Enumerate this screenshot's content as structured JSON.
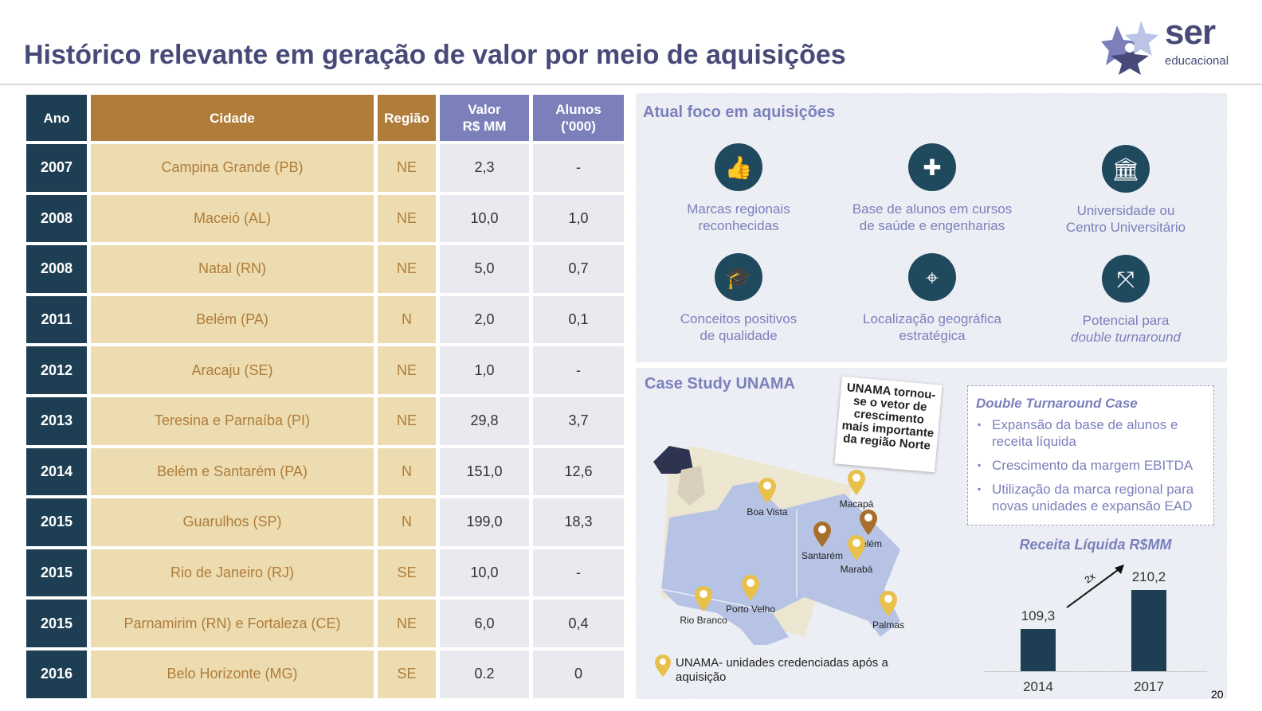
{
  "title": "Histórico relevante em geração de valor por meio de aquisições",
  "logo": {
    "name": "ser",
    "sub": "educacional"
  },
  "table": {
    "headers": [
      "Ano",
      "Cidade",
      "Região",
      "Valor R$ MM",
      "Alunos ('000)"
    ],
    "rows": [
      [
        "2007",
        "Campina Grande (PB)",
        "NE",
        "2,3",
        "-"
      ],
      [
        "2008",
        "Maceió (AL)",
        "NE",
        "10,0",
        "1,0"
      ],
      [
        "2008",
        "Natal (RN)",
        "NE",
        "5,0",
        "0,7"
      ],
      [
        "2011",
        "Belém (PA)",
        "N",
        "2,0",
        "0,1"
      ],
      [
        "2012",
        "Aracaju (SE)",
        "NE",
        "1,0",
        "-"
      ],
      [
        "2013",
        "Teresina e Parnaíba (PI)",
        "NE",
        "29,8",
        "3,7"
      ],
      [
        "2014",
        "Belém e Santarém (PA)",
        "N",
        "151,0",
        "12,6"
      ],
      [
        "2015",
        "Guarulhos (SP)",
        "N",
        "199,0",
        "18,3"
      ],
      [
        "2015",
        "Rio de Janeiro (RJ)",
        "SE",
        "10,0",
        "-"
      ],
      [
        "2015",
        "Parnamirim (RN) e Fortaleza (CE)",
        "NE",
        "6,0",
        "0,4"
      ],
      [
        "2016",
        "Belo Horizonte (MG)",
        "SE",
        "0.2",
        "0"
      ]
    ]
  },
  "focus": {
    "title": "Atual foco em aquisições",
    "items": [
      {
        "icon": "thumbs-up",
        "l1": "Marcas regionais",
        "l2": "reconhecidas"
      },
      {
        "icon": "medical",
        "l1": "Base de alunos em cursos",
        "l2": "de saúde e engenharias"
      },
      {
        "icon": "university",
        "l1": "Universidade ou",
        "l2": "Centro Universitário"
      },
      {
        "icon": "graduation-cap",
        "l1": "Conceitos positivos",
        "l2": "de qualidade"
      },
      {
        "icon": "map-pin",
        "l1": "Localização geográfica",
        "l2": "estratégica"
      },
      {
        "icon": "expand",
        "l1": "Potencial para",
        "l2": "double turnaround"
      }
    ]
  },
  "case": {
    "title": "Case Study UNAMA",
    "note": "UNAMA tornou-se o vetor de crescimento mais importante da região Norte",
    "cities": [
      "Boa Vista",
      "Macapá",
      "Belém",
      "Santarém",
      "Marabá",
      "Rio Branco",
      "Porto Velho",
      "Palmas"
    ],
    "legend": "UNAMA- unidades credenciadas após a aquisição",
    "dtc_title": "Double Turnaround Case",
    "bullets": [
      "Expansão da base de alunos e receita líquida",
      "Crescimento da margem EBITDA",
      "Utilização da marca regional para novas unidades e expansão EAD"
    ],
    "colors": {
      "pin_accredited": "#e8c04a",
      "pin_acquired": "#a86f2c"
    }
  },
  "chart_data": {
    "type": "bar",
    "title": "Receita Líquida R$MM",
    "categories": [
      "2014",
      "2017"
    ],
    "values": [
      109.3,
      210.2
    ],
    "labels": [
      "109,3",
      "210,2"
    ],
    "annotation": "2x"
  },
  "page_number": "20"
}
